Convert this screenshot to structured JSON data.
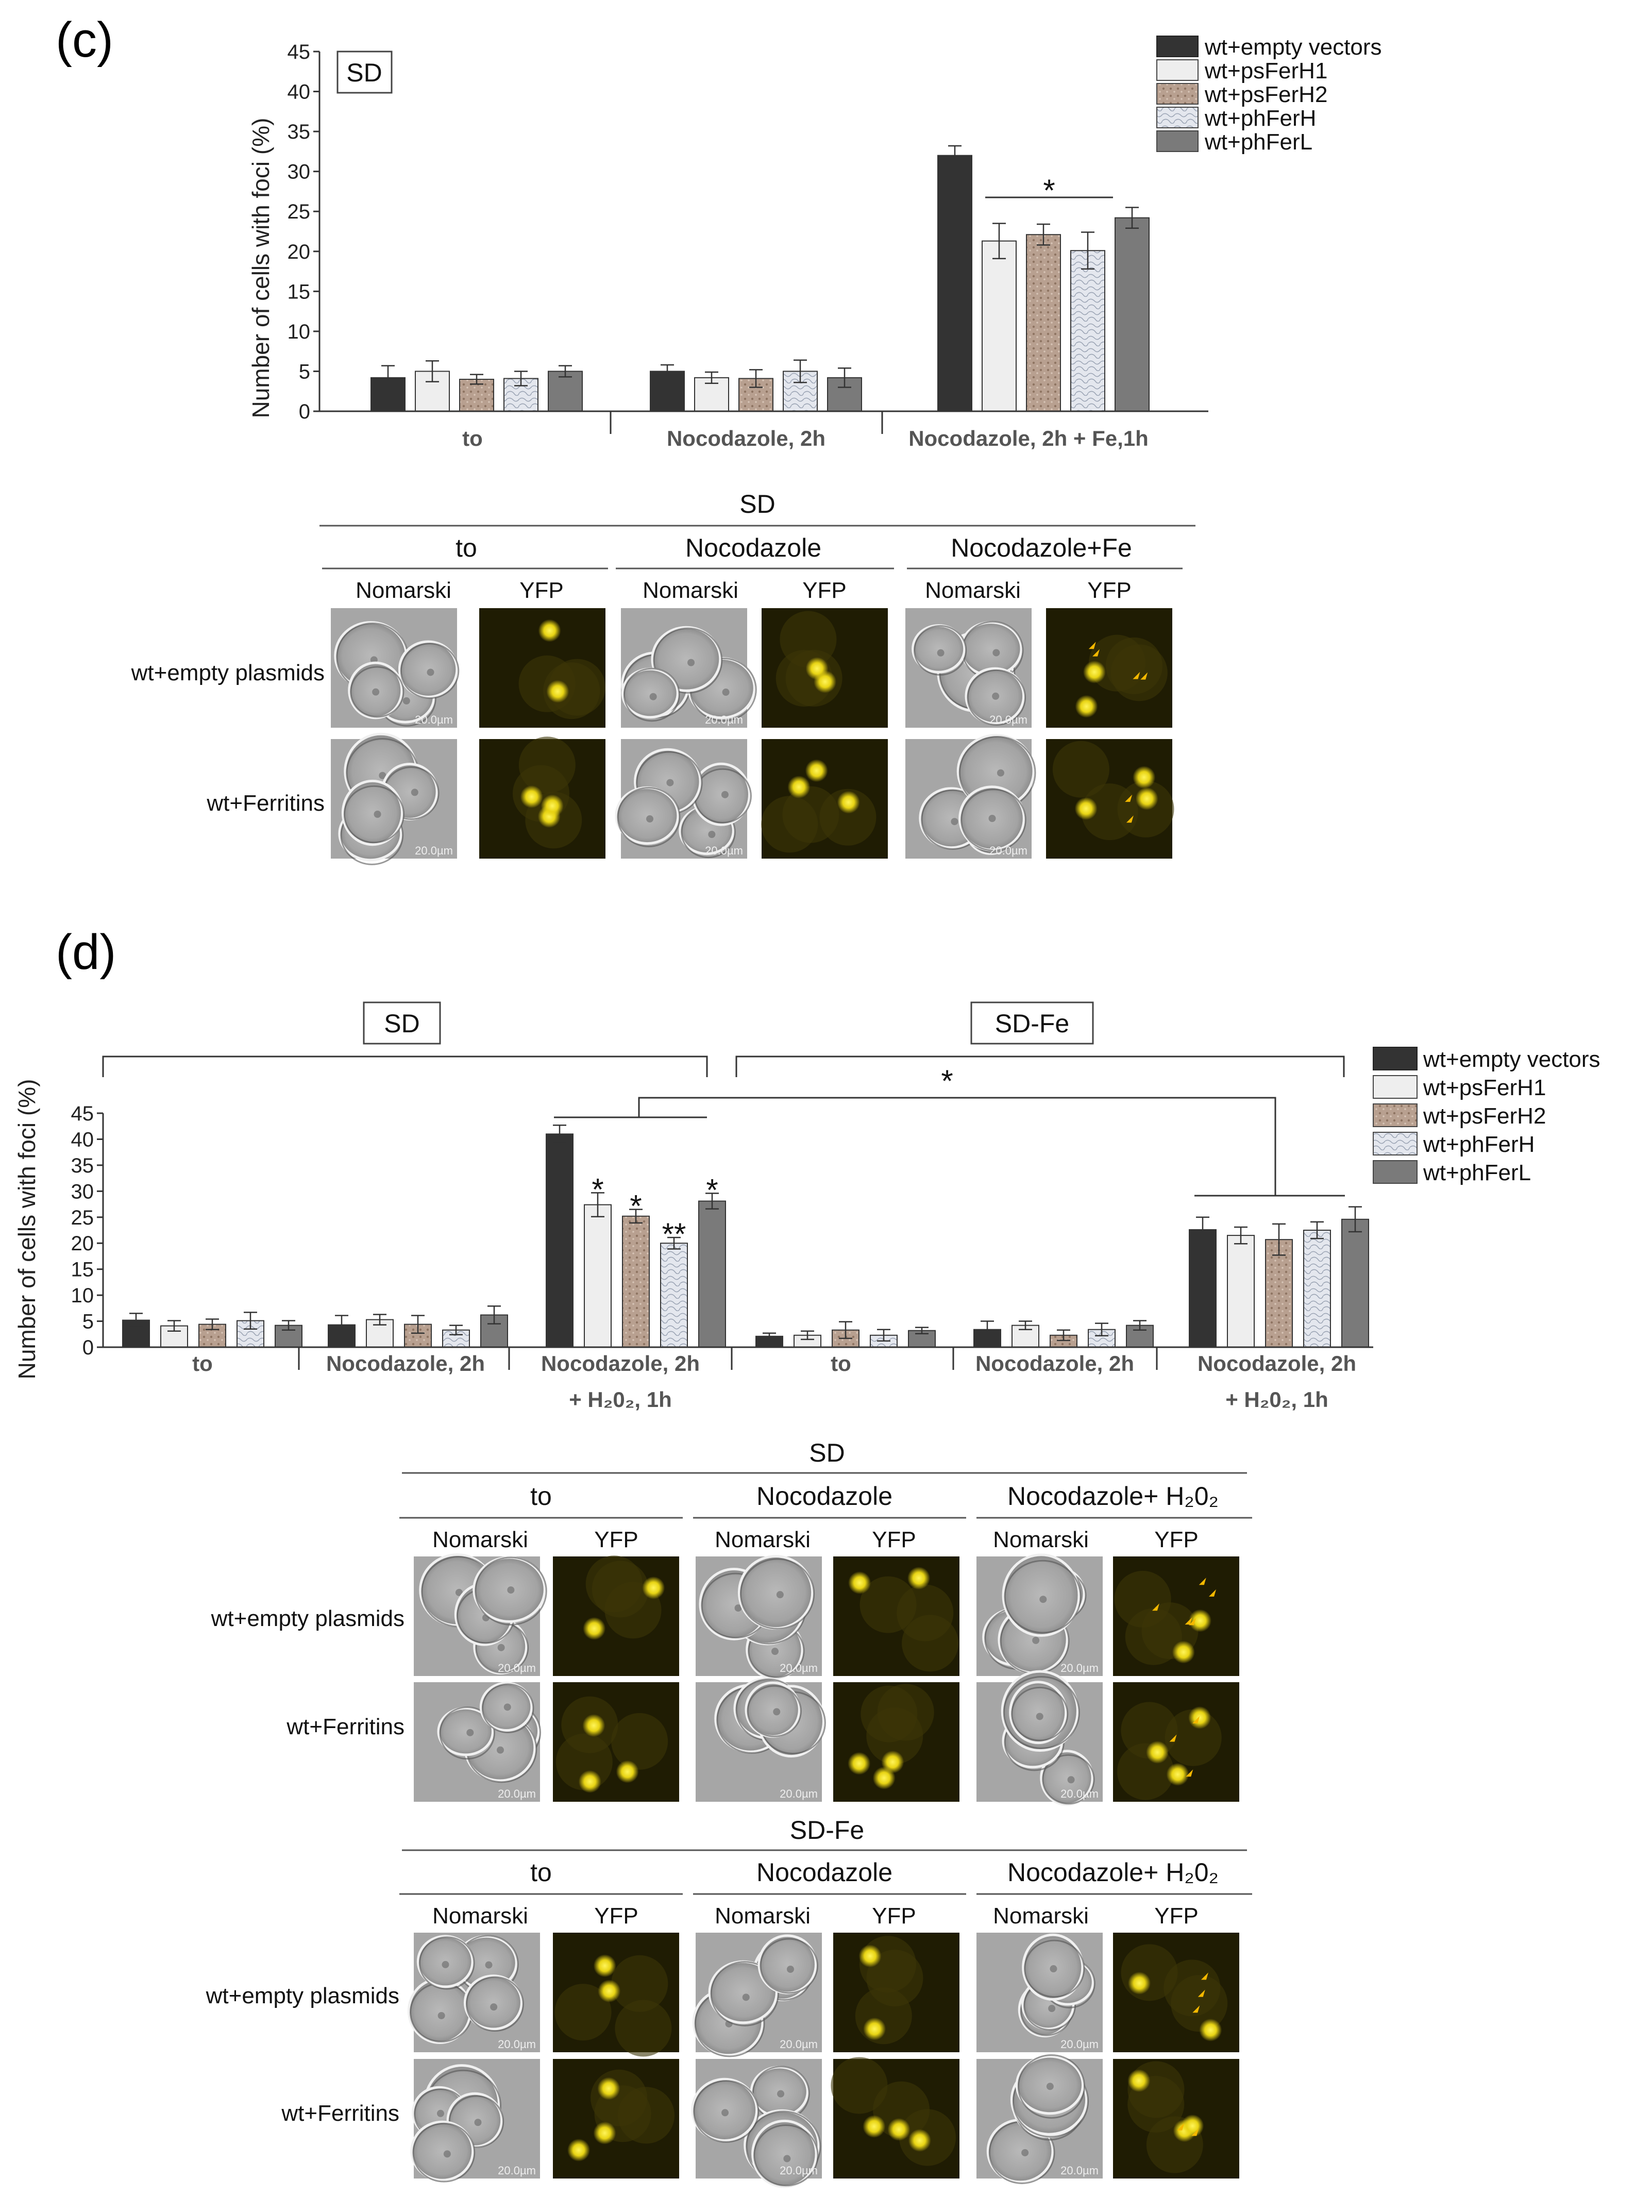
{
  "figure": {
    "panels": [
      {
        "label": "(c)",
        "medium_box": "SD",
        "chart_data": {
          "type": "bar",
          "ylabel": "Number of cells with foci (%)",
          "ylim": [
            0,
            45
          ],
          "yticks": [
            0,
            5,
            10,
            15,
            20,
            25,
            30,
            35,
            40,
            45
          ],
          "legend_position": "top-right",
          "groups": [
            {
              "label": "to",
              "medium": "SD"
            },
            {
              "label": "Nocodazole, 2h",
              "medium": "SD"
            },
            {
              "label": "Nocodazole, 2h + Fe,1h",
              "medium": "SD"
            }
          ],
          "series": [
            {
              "name": "wt+empty vectors",
              "values": [
                4.2,
                5.0,
                32.0
              ],
              "errors": [
                1.5,
                0.8,
                1.2
              ]
            },
            {
              "name": "wt+psFerH1",
              "values": [
                5.0,
                4.2,
                21.3
              ],
              "errors": [
                1.3,
                0.7,
                2.2
              ]
            },
            {
              "name": "wt+psFerH2",
              "values": [
                4.0,
                4.1,
                22.1
              ],
              "errors": [
                0.6,
                1.1,
                1.3
              ]
            },
            {
              "name": "wt+phFerH",
              "values": [
                4.1,
                5.0,
                20.1
              ],
              "errors": [
                0.9,
                1.4,
                2.3
              ]
            },
            {
              "name": "wt+phFerL",
              "values": [
                5.0,
                4.2,
                24.2
              ],
              "errors": [
                0.7,
                1.2,
                1.3
              ]
            }
          ],
          "significance": [
            {
              "text": "*",
              "group": 2,
              "from_series": 1,
              "to_series": 4
            }
          ]
        },
        "micrographs": {
          "medium": "SD",
          "conditions": [
            "to",
            "Nocodazole",
            "Nocodazole+Fe"
          ],
          "channels": [
            "Nomarski",
            "YFP"
          ],
          "rows": [
            "wt+empty plasmids",
            "wt+Ferritins"
          ],
          "scale_bar": "20.0µm"
        }
      },
      {
        "label": "(d)",
        "chart_data": {
          "type": "bar",
          "ylabel": "Number of cells with foci (%)",
          "ylim": [
            0,
            45
          ],
          "yticks": [
            0,
            5,
            10,
            15,
            20,
            25,
            30,
            35,
            40,
            45
          ],
          "legend_position": "top-right",
          "media": [
            "SD",
            "SD-Fe"
          ],
          "groups": [
            {
              "label": "to",
              "medium": "SD"
            },
            {
              "label": "Nocodazole, 2h",
              "medium": "SD"
            },
            {
              "label": "Nocodazole, 2h",
              "label2": "+ H₂0₂, 1h",
              "medium": "SD"
            },
            {
              "label": "to",
              "medium": "SD-Fe"
            },
            {
              "label": "Nocodazole, 2h",
              "medium": "SD-Fe"
            },
            {
              "label": "Nocodazole, 2h",
              "label2": "+ H₂0₂, 1h",
              "medium": "SD-Fe"
            }
          ],
          "series": [
            {
              "name": "wt+empty vectors",
              "values": [
                5.2,
                4.3,
                41.0,
                2.1,
                3.4,
                22.6
              ],
              "errors": [
                1.3,
                1.8,
                1.7,
                0.6,
                1.6,
                2.4
              ]
            },
            {
              "name": "wt+psFerH1",
              "values": [
                4.1,
                5.3,
                27.4,
                2.3,
                4.2,
                21.5
              ],
              "errors": [
                1.0,
                1.0,
                2.3,
                0.8,
                0.8,
                1.6
              ]
            },
            {
              "name": "wt+psFerH2",
              "values": [
                4.4,
                4.4,
                25.2,
                3.3,
                2.3,
                20.7
              ],
              "errors": [
                1.0,
                1.7,
                1.3,
                1.6,
                1.0,
                3.0
              ]
            },
            {
              "name": "wt+phFerH",
              "values": [
                5.1,
                3.3,
                20.0,
                2.3,
                3.4,
                22.5
              ],
              "errors": [
                1.6,
                0.9,
                1.1,
                1.1,
                1.2,
                1.6
              ]
            },
            {
              "name": "wt+phFerL",
              "values": [
                4.2,
                6.2,
                28.1,
                3.2,
                4.2,
                24.6
              ],
              "errors": [
                0.9,
                1.7,
                1.5,
                0.6,
                0.9,
                2.4
              ]
            }
          ],
          "bar_stars": [
            {
              "group": 2,
              "series": 1,
              "text": "*"
            },
            {
              "group": 2,
              "series": 2,
              "text": "*"
            },
            {
              "group": 2,
              "series": 3,
              "text": "**"
            },
            {
              "group": 2,
              "series": 4,
              "text": "*"
            }
          ],
          "significance": [
            {
              "text": "*",
              "between_groups": [
                2,
                5
              ]
            }
          ]
        },
        "micrographs": [
          {
            "medium": "SD",
            "conditions": [
              "to",
              "Nocodazole",
              "Nocodazole+ H₂0₂"
            ],
            "channels": [
              "Nomarski",
              "YFP"
            ],
            "rows": [
              "wt+empty plasmids",
              "wt+Ferritins"
            ],
            "scale_bar": "20.0µm"
          },
          {
            "medium": "SD-Fe",
            "conditions": [
              "to",
              "Nocodazole",
              "Nocodazole+ H₂0₂"
            ],
            "channels": [
              "Nomarski",
              "YFP"
            ],
            "rows": [
              "wt+empty plasmids",
              "wt+Ferritins"
            ],
            "scale_bar": "20.0µm"
          }
        ]
      }
    ]
  },
  "colors": {
    "wt+empty vectors": "#333333",
    "wt+psFerH1": "#eeeeee",
    "wt+psFerH2": "#b8a090",
    "wt+phFerH": "#dfe3ea",
    "wt+phFerL": "#7a7a7a",
    "nomarski_bg": "#a8a8a8",
    "yfp_bg": "#201d02",
    "yfp_spot": "#f2e21a",
    "arrow": "#f5b800"
  }
}
